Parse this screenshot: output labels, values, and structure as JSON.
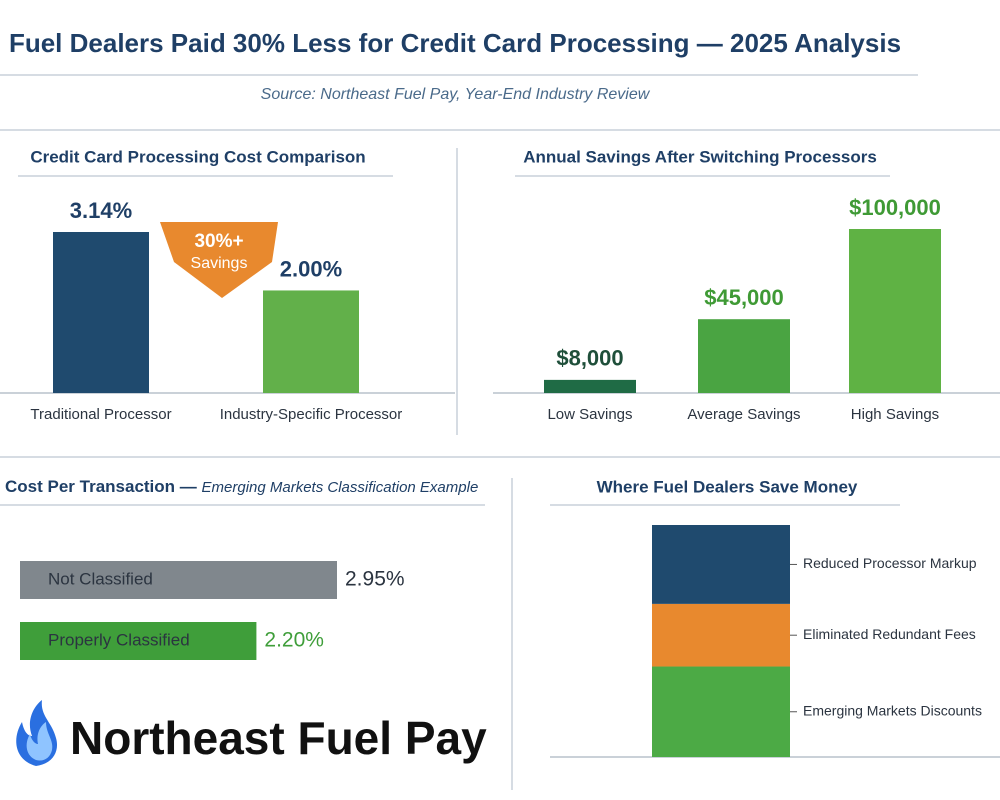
{
  "header": {
    "title": "Fuel Dealers Paid 30% Less for Credit Card Processing — 2025 Analysis",
    "source": "Source: Northeast Fuel Pay, Year-End Industry Review"
  },
  "chart_data": [
    {
      "type": "bar",
      "title": "Credit Card Processing Cost Comparison",
      "categories": [
        "Traditional Processor",
        "Industry-Specific Processor"
      ],
      "values": [
        3.14,
        2.0
      ],
      "value_labels": [
        "3.14%",
        "2.00%"
      ],
      "colors": [
        "#1f4a6e",
        "#62b04a"
      ],
      "label_colors": [
        "#1f3f66",
        "#1f3f66"
      ],
      "annotation": [
        "30%+",
        "Savings"
      ]
    },
    {
      "type": "bar",
      "title": "Annual Savings After Switching Processors",
      "categories": [
        "Low Savings",
        "Average Savings",
        "High Savings"
      ],
      "values": [
        8000,
        45000,
        100000
      ],
      "value_labels": [
        "$8,000",
        "$45,000",
        "$100,000"
      ],
      "colors": [
        "#1f6b45",
        "#4aa442",
        "#5fb244"
      ],
      "label_colors": [
        "#1f4f3a",
        "#3f9a35",
        "#3f9a35"
      ]
    },
    {
      "type": "hbar",
      "title": "Cost Per Transaction —",
      "subtitle": "Emerging Markets Classification Example",
      "categories": [
        "Not Classified",
        "Properly Classified"
      ],
      "values": [
        2.95,
        2.2
      ],
      "value_labels": [
        "2.95%",
        "2.20%"
      ],
      "colors": [
        "#80878d",
        "#3f9e3a"
      ],
      "label_colors": [
        "#2b3440",
        "#3f9e3a"
      ]
    },
    {
      "type": "stacked",
      "title": "Where Fuel Dealers Save Money",
      "categories": [
        "Reduced Processor Markup",
        "Eliminated Redundant Fees",
        "Emerging Markets Discounts"
      ],
      "values": [
        34,
        27,
        39
      ],
      "colors": [
        "#1f4a6e",
        "#e8892e",
        "#4caa45"
      ]
    }
  ],
  "logo": {
    "text": "Northeast Fuel Pay"
  }
}
